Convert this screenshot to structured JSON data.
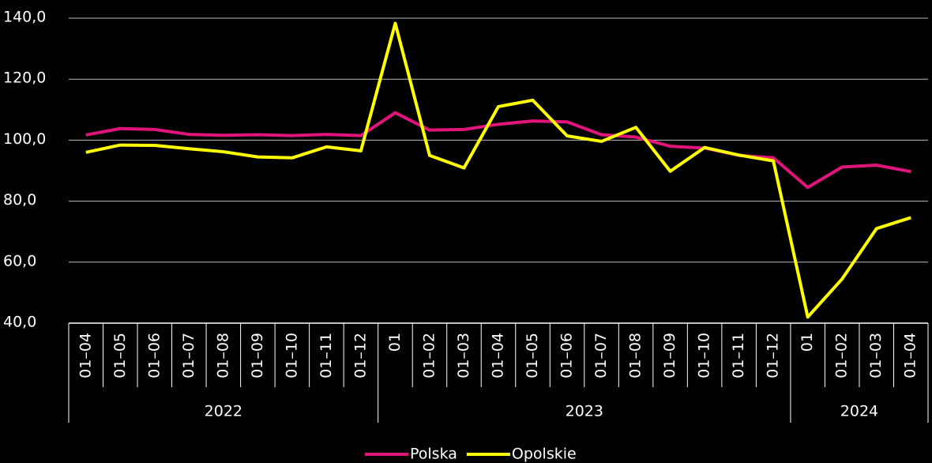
{
  "chart_data": {
    "type": "line",
    "categories": [
      "01–04",
      "01–05",
      "01–06",
      "01–07",
      "01–08",
      "01–09",
      "01–10",
      "01–11",
      "01–12",
      "01",
      "01–02",
      "01–03",
      "01–04",
      "01–05",
      "01–06",
      "01–07",
      "01–08",
      "01–09",
      "01–10",
      "01–11",
      "01–12",
      "01",
      "01–02",
      "01–03",
      "01–04"
    ],
    "year_groups": [
      {
        "label": "2022",
        "count": 9
      },
      {
        "label": "2023",
        "count": 12
      },
      {
        "label": "2024",
        "count": 4
      }
    ],
    "series": [
      {
        "name": "Polska",
        "color": "#e0147a",
        "values": [
          101.7,
          103.8,
          103.5,
          101.9,
          101.6,
          101.8,
          101.5,
          101.9,
          101.5,
          109.0,
          103.3,
          103.5,
          105.2,
          106.3,
          106.0,
          101.8,
          101.0,
          98.0,
          97.4,
          95.0,
          94.2,
          84.5,
          91.2,
          91.8,
          89.7
        ]
      },
      {
        "name": "Opolskie",
        "color": "#ffff00",
        "values": [
          96.0,
          98.4,
          98.3,
          97.2,
          96.2,
          94.5,
          94.2,
          97.8,
          96.5,
          138.3,
          95.0,
          90.9,
          111.0,
          113.1,
          101.4,
          99.6,
          104.2,
          89.8,
          97.6,
          95.1,
          93.2,
          42.0,
          54.5,
          71.0,
          74.6
        ]
      }
    ],
    "ylim": [
      40,
      140
    ],
    "yticks": [
      {
        "value": 40,
        "label": "40,0"
      },
      {
        "value": 60,
        "label": "60,0"
      },
      {
        "value": 80,
        "label": "80,0"
      },
      {
        "value": 100,
        "label": "100,0"
      },
      {
        "value": 120,
        "label": "120,0"
      },
      {
        "value": 140,
        "label": "140,0"
      }
    ],
    "grid": true,
    "legend": "bottom"
  }
}
